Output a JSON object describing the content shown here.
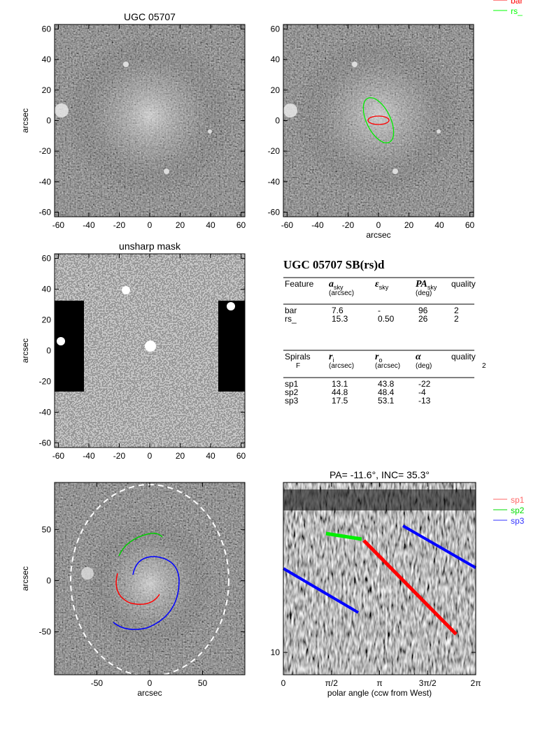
{
  "panels": [
    {
      "title": "UGC 05707",
      "ylabel": "arcsec",
      "xlim": [
        -62.5,
        62.5
      ],
      "ylim": [
        -63,
        63
      ],
      "xticks": [
        -60,
        -40,
        -20,
        0,
        20,
        40,
        60
      ],
      "yticks": [
        -60,
        -40,
        -20,
        0,
        20,
        40,
        60
      ]
    },
    {
      "xlabel": "arcsec",
      "xlim": [
        -62.5,
        62.5
      ],
      "ylim": [
        -63,
        63
      ],
      "xticks": [
        -60,
        -40,
        -20,
        0,
        20,
        40,
        60
      ],
      "yticks": [
        -60,
        -40,
        -20,
        0,
        20,
        40,
        60
      ],
      "legend": [
        {
          "name": "bar",
          "color": "#ff0000"
        },
        {
          "name": "rs_",
          "color": "#00ff00"
        }
      ]
    },
    {
      "title": "unsharp mask",
      "ylabel": "arcsec",
      "xlim": [
        -62.5,
        62.5
      ],
      "ylim": [
        -63,
        63
      ],
      "xticks": [
        -60,
        -40,
        -20,
        0,
        20,
        40,
        60
      ],
      "yticks": [
        -60,
        -40,
        -20,
        0,
        20,
        40,
        60
      ]
    },
    {
      "xlabel": "arcsec",
      "ylabel": "arcsec",
      "xlim": [
        -90,
        90
      ],
      "ylim": [
        -92,
        96
      ],
      "xticks": [
        -50,
        0,
        50
      ],
      "yticks": [
        -50,
        0,
        50
      ]
    },
    {
      "title": "PA= -11.6°, INC=  35.3°",
      "xlabel": "polar angle (ccw from West)",
      "xlim": [
        0,
        6.2832
      ],
      "ylim": [
        7.9,
        60
      ],
      "log_y": true,
      "xticks": [
        0,
        {
          "value": 1.5708,
          "label": "π/2"
        },
        {
          "value": 3.1416,
          "label": "π"
        },
        {
          "value": 4.7124,
          "label": "3π/2"
        },
        {
          "value": 6.2832,
          "label": "2π"
        }
      ],
      "yticks": [
        10
      ],
      "legend": [
        {
          "name": "sp1",
          "color": "#ff6666"
        },
        {
          "name": "sp2",
          "color": "#00dd00"
        },
        {
          "name": "sp3",
          "color": "#3333ff"
        }
      ]
    }
  ],
  "table": {
    "title": "UGC 05707  SB(rs)d",
    "features": {
      "header": [
        {
          "text": "Feature"
        },
        {
          "sym": "a",
          "sub": "sky",
          "unit": "(arcsec)"
        },
        {
          "sym": "ε",
          "sub": "sky"
        },
        {
          "sym": "PA",
          "sub": "sky",
          "unit": "(deg)"
        },
        {
          "text": "quality"
        }
      ],
      "rows": [
        [
          "bar",
          "7.6",
          "-",
          "96",
          "2"
        ],
        [
          "rs_",
          "15.3",
          "0.50",
          "26",
          "2"
        ]
      ]
    },
    "spirals": {
      "header": [
        {
          "text": "Spirals",
          "unit": "F"
        },
        {
          "sym": "r",
          "sub": "i",
          "unit": "(arcsec)"
        },
        {
          "sym": "r",
          "sub": "o",
          "unit": "(arcsec)"
        },
        {
          "sym": "α",
          "unit": "(deg)"
        },
        {
          "text": "quality",
          "unit": "2"
        }
      ],
      "rows": [
        [
          "sp1",
          "13.1",
          "43.8",
          "-22"
        ],
        [
          "sp2",
          "44.8",
          "48.4",
          "-4"
        ],
        [
          "sp3",
          "17.5",
          "53.1",
          "-13"
        ]
      ]
    }
  }
}
